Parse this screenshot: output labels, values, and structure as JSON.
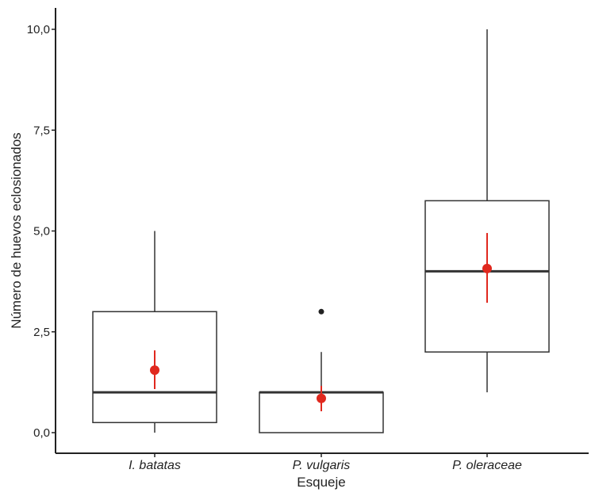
{
  "chart_data": {
    "type": "box",
    "xlabel": "Esqueje",
    "ylabel": "Número de huevos eclosionados",
    "ylim": [
      0,
      10
    ],
    "yticks": [
      0,
      2.5,
      5,
      7.5,
      10
    ],
    "ytick_labels": [
      "0,0",
      "2,5",
      "5,0",
      "7,5",
      "10,0"
    ],
    "grid": false,
    "categories": [
      "I. batatas",
      "P. vulgaris",
      "P. oleraceae"
    ],
    "boxes": [
      {
        "whisker_low": 0,
        "q1": 0.25,
        "median": 1,
        "q3": 3,
        "whisker_high": 5,
        "outliers": [],
        "mean": 1.55,
        "mean_err_low": 1.08,
        "mean_err_high": 2.04
      },
      {
        "whisker_low": 0,
        "q1": 0,
        "median": 1,
        "q3": 1,
        "whisker_high": 2,
        "outliers": [
          3
        ],
        "mean": 0.85,
        "mean_err_low": 0.53,
        "mean_err_high": 1.16
      },
      {
        "whisker_low": 1,
        "q1": 2,
        "median": 4,
        "q3": 5.75,
        "whisker_high": 10,
        "outliers": [],
        "mean": 4.07,
        "mean_err_low": 3.22,
        "mean_err_high": 4.95
      }
    ],
    "colors": {
      "box": "#333333",
      "mean": "#e0281e",
      "outlier": "#222222"
    }
  }
}
